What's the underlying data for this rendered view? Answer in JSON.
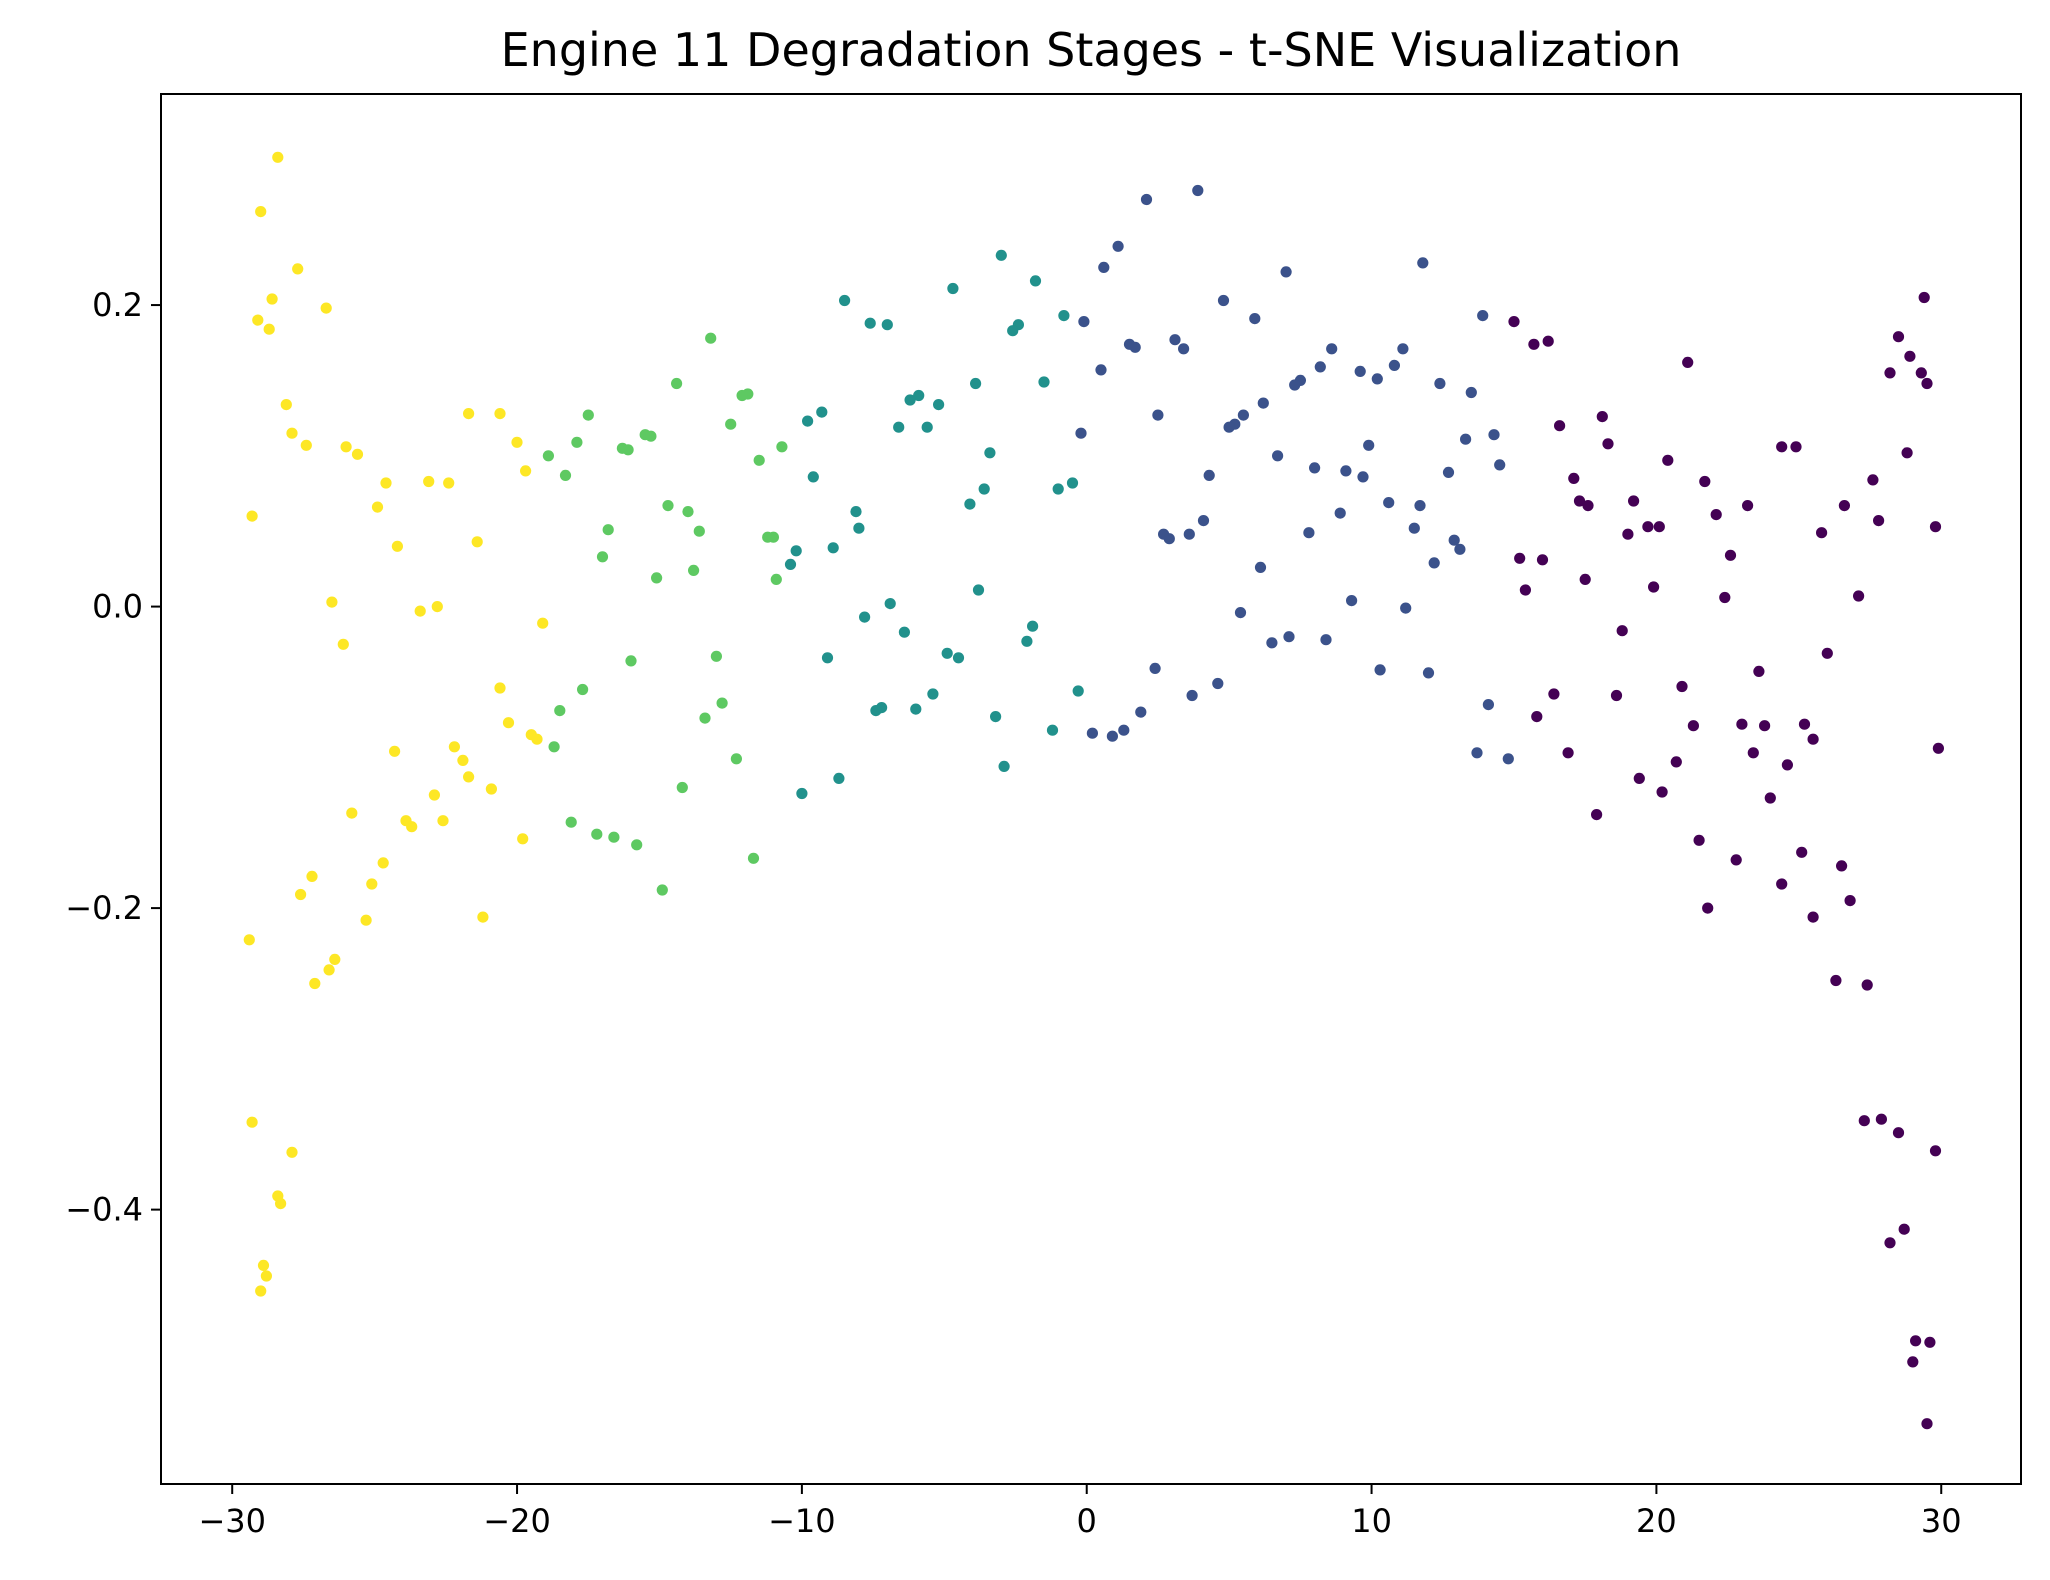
{
  "chart_data": {
    "type": "scatter",
    "title": "Engine 11 Degradation Stages - t-SNE Visualization",
    "xlabel": "",
    "ylabel": "",
    "xlim": [
      -32.5,
      32.8
    ],
    "ylim": [
      -0.582,
      0.34
    ],
    "xticks": [
      -30,
      -20,
      -10,
      0,
      10,
      20,
      30
    ],
    "yticks": [
      -0.4,
      -0.2,
      0.0,
      0.2
    ],
    "xtick_labels": [
      "−30",
      "−20",
      "−10",
      "0",
      "10",
      "20",
      "30"
    ],
    "ytick_labels": [
      "−0.4",
      "−0.2",
      "0.0",
      "0.2"
    ],
    "grid": false,
    "legend": "none",
    "colormap": "viridis",
    "series": [
      {
        "color": "#fde725",
        "points": [
          [
            -28.4,
            0.298
          ],
          [
            -29.0,
            0.262
          ],
          [
            -27.7,
            0.224
          ],
          [
            -28.6,
            0.204
          ],
          [
            -26.7,
            0.198
          ],
          [
            -29.1,
            0.19
          ],
          [
            -28.7,
            0.184
          ],
          [
            -28.1,
            0.134
          ],
          [
            -27.9,
            0.115
          ],
          [
            -27.4,
            0.107
          ],
          [
            -26.0,
            0.106
          ],
          [
            -25.6,
            0.101
          ],
          [
            -21.7,
            0.128
          ],
          [
            -20.6,
            0.128
          ],
          [
            -20.0,
            0.109
          ],
          [
            -29.3,
            0.06
          ],
          [
            -24.6,
            0.082
          ],
          [
            -23.1,
            0.083
          ],
          [
            -22.4,
            0.082
          ],
          [
            -19.7,
            0.09
          ],
          [
            -24.9,
            0.066
          ],
          [
            -24.2,
            0.04
          ],
          [
            -21.4,
            0.043
          ],
          [
            -26.5,
            0.003
          ],
          [
            -23.4,
            -0.003
          ],
          [
            -22.8,
            0.0
          ],
          [
            -19.1,
            -0.011
          ],
          [
            -26.1,
            -0.025
          ],
          [
            -20.6,
            -0.054
          ],
          [
            -20.3,
            -0.077
          ],
          [
            -19.5,
            -0.085
          ],
          [
            -19.3,
            -0.088
          ],
          [
            -24.3,
            -0.096
          ],
          [
            -22.2,
            -0.093
          ],
          [
            -21.9,
            -0.102
          ],
          [
            -21.7,
            -0.113
          ],
          [
            -22.9,
            -0.125
          ],
          [
            -20.9,
            -0.121
          ],
          [
            -25.8,
            -0.137
          ],
          [
            -23.9,
            -0.142
          ],
          [
            -22.6,
            -0.142
          ],
          [
            -23.7,
            -0.146
          ],
          [
            -19.8,
            -0.154
          ],
          [
            -24.7,
            -0.17
          ],
          [
            -27.2,
            -0.179
          ],
          [
            -25.1,
            -0.184
          ],
          [
            -27.6,
            -0.191
          ],
          [
            -25.3,
            -0.208
          ],
          [
            -21.2,
            -0.206
          ],
          [
            -29.4,
            -0.221
          ],
          [
            -26.4,
            -0.234
          ],
          [
            -26.6,
            -0.241
          ],
          [
            -27.1,
            -0.25
          ],
          [
            -29.3,
            -0.342
          ],
          [
            -27.9,
            -0.362
          ],
          [
            -28.4,
            -0.391
          ],
          [
            -28.3,
            -0.396
          ],
          [
            -28.9,
            -0.437
          ],
          [
            -28.8,
            -0.444
          ],
          [
            -29.0,
            -0.454
          ]
        ]
      },
      {
        "color": "#5ec962",
        "points": [
          [
            -13.2,
            0.178
          ],
          [
            -14.4,
            0.148
          ],
          [
            -11.9,
            0.141
          ],
          [
            -12.1,
            0.14
          ],
          [
            -17.5,
            0.127
          ],
          [
            -12.5,
            0.121
          ],
          [
            -15.5,
            0.114
          ],
          [
            -15.3,
            0.113
          ],
          [
            -17.9,
            0.109
          ],
          [
            -16.3,
            0.105
          ],
          [
            -16.1,
            0.104
          ],
          [
            -10.7,
            0.106
          ],
          [
            -18.9,
            0.1
          ],
          [
            -11.5,
            0.097
          ],
          [
            -18.3,
            0.087
          ],
          [
            -14.7,
            0.067
          ],
          [
            -14.0,
            0.063
          ],
          [
            -16.8,
            0.051
          ],
          [
            -13.6,
            0.05
          ],
          [
            -11.2,
            0.046
          ],
          [
            -11.0,
            0.046
          ],
          [
            -17.0,
            0.033
          ],
          [
            -13.8,
            0.024
          ],
          [
            -15.1,
            0.019
          ],
          [
            -10.9,
            0.018
          ],
          [
            -13.0,
            -0.033
          ],
          [
            -16.0,
            -0.036
          ],
          [
            -17.7,
            -0.055
          ],
          [
            -12.8,
            -0.064
          ],
          [
            -18.5,
            -0.069
          ],
          [
            -13.4,
            -0.074
          ],
          [
            -18.7,
            -0.093
          ],
          [
            -12.3,
            -0.101
          ],
          [
            -14.2,
            -0.12
          ],
          [
            -18.1,
            -0.143
          ],
          [
            -17.2,
            -0.151
          ],
          [
            -16.6,
            -0.153
          ],
          [
            -15.8,
            -0.158
          ],
          [
            -11.7,
            -0.167
          ],
          [
            -14.9,
            -0.188
          ]
        ]
      },
      {
        "color": "#21918c",
        "points": [
          [
            -3.0,
            0.233
          ],
          [
            -4.7,
            0.211
          ],
          [
            -1.8,
            0.216
          ],
          [
            -8.5,
            0.203
          ],
          [
            -0.8,
            0.193
          ],
          [
            -2.4,
            0.187
          ],
          [
            -2.6,
            0.183
          ],
          [
            -7.6,
            0.188
          ],
          [
            -7.0,
            0.187
          ],
          [
            -3.9,
            0.148
          ],
          [
            -1.5,
            0.149
          ],
          [
            -5.9,
            0.14
          ],
          [
            -6.2,
            0.137
          ],
          [
            -5.2,
            0.134
          ],
          [
            -9.3,
            0.129
          ],
          [
            -9.8,
            0.123
          ],
          [
            -6.6,
            0.119
          ],
          [
            -5.6,
            0.119
          ],
          [
            -3.4,
            0.102
          ],
          [
            -9.6,
            0.086
          ],
          [
            -0.5,
            0.082
          ],
          [
            -1.0,
            0.078
          ],
          [
            -3.6,
            0.078
          ],
          [
            -4.1,
            0.068
          ],
          [
            -8.1,
            0.063
          ],
          [
            -8.0,
            0.052
          ],
          [
            -8.9,
            0.039
          ],
          [
            -10.2,
            0.037
          ],
          [
            -10.4,
            0.028
          ],
          [
            -3.8,
            0.011
          ],
          [
            -6.9,
            0.002
          ],
          [
            -7.8,
            -0.007
          ],
          [
            -1.9,
            -0.013
          ],
          [
            -6.4,
            -0.017
          ],
          [
            -2.1,
            -0.023
          ],
          [
            -4.9,
            -0.031
          ],
          [
            -4.5,
            -0.034
          ],
          [
            -9.1,
            -0.034
          ],
          [
            -0.3,
            -0.056
          ],
          [
            -5.4,
            -0.058
          ],
          [
            -7.2,
            -0.067
          ],
          [
            -6.0,
            -0.068
          ],
          [
            -7.4,
            -0.069
          ],
          [
            -3.2,
            -0.073
          ],
          [
            -1.2,
            -0.082
          ],
          [
            -2.9,
            -0.106
          ],
          [
            -8.7,
            -0.114
          ],
          [
            -10.0,
            -0.124
          ]
        ]
      },
      {
        "color": "#3b528b",
        "points": [
          [
            3.9,
            0.276
          ],
          [
            2.1,
            0.27
          ],
          [
            1.1,
            0.239
          ],
          [
            11.8,
            0.228
          ],
          [
            0.6,
            0.225
          ],
          [
            7.0,
            0.222
          ],
          [
            4.8,
            0.203
          ],
          [
            13.9,
            0.193
          ],
          [
            5.9,
            0.191
          ],
          [
            -0.1,
            0.189
          ],
          [
            1.5,
            0.174
          ],
          [
            3.1,
            0.177
          ],
          [
            1.7,
            0.172
          ],
          [
            3.4,
            0.171
          ],
          [
            8.6,
            0.171
          ],
          [
            11.1,
            0.171
          ],
          [
            10.8,
            0.16
          ],
          [
            8.2,
            0.159
          ],
          [
            0.5,
            0.157
          ],
          [
            9.6,
            0.156
          ],
          [
            10.2,
            0.151
          ],
          [
            7.5,
            0.15
          ],
          [
            7.3,
            0.147
          ],
          [
            12.4,
            0.148
          ],
          [
            13.5,
            0.142
          ],
          [
            6.2,
            0.135
          ],
          [
            2.5,
            0.127
          ],
          [
            5.5,
            0.127
          ],
          [
            5.2,
            0.121
          ],
          [
            5.0,
            0.119
          ],
          [
            -0.2,
            0.115
          ],
          [
            14.3,
            0.114
          ],
          [
            13.3,
            0.111
          ],
          [
            9.9,
            0.107
          ],
          [
            6.7,
            0.1
          ],
          [
            14.5,
            0.094
          ],
          [
            8.0,
            0.092
          ],
          [
            9.1,
            0.09
          ],
          [
            12.7,
            0.089
          ],
          [
            4.3,
            0.087
          ],
          [
            9.7,
            0.086
          ],
          [
            10.6,
            0.069
          ],
          [
            11.7,
            0.067
          ],
          [
            8.9,
            0.062
          ],
          [
            4.1,
            0.057
          ],
          [
            11.5,
            0.052
          ],
          [
            7.8,
            0.049
          ],
          [
            3.6,
            0.048
          ],
          [
            2.7,
            0.048
          ],
          [
            2.9,
            0.045
          ],
          [
            12.9,
            0.044
          ],
          [
            13.1,
            0.038
          ],
          [
            12.2,
            0.029
          ],
          [
            6.1,
            0.026
          ],
          [
            9.3,
            0.004
          ],
          [
            11.2,
            -0.001
          ],
          [
            5.4,
            -0.004
          ],
          [
            7.1,
            -0.02
          ],
          [
            6.5,
            -0.024
          ],
          [
            8.4,
            -0.022
          ],
          [
            2.4,
            -0.041
          ],
          [
            10.3,
            -0.042
          ],
          [
            12.0,
            -0.044
          ],
          [
            4.6,
            -0.051
          ],
          [
            3.7,
            -0.059
          ],
          [
            1.9,
            -0.07
          ],
          [
            1.3,
            -0.082
          ],
          [
            0.2,
            -0.084
          ],
          [
            0.9,
            -0.086
          ],
          [
            14.1,
            -0.065
          ],
          [
            13.7,
            -0.097
          ],
          [
            14.8,
            -0.101
          ]
        ]
      },
      {
        "color": "#440154",
        "points": [
          [
            29.4,
            0.205
          ],
          [
            15.0,
            0.189
          ],
          [
            28.5,
            0.179
          ],
          [
            16.2,
            0.176
          ],
          [
            15.7,
            0.174
          ],
          [
            28.9,
            0.166
          ],
          [
            21.1,
            0.162
          ],
          [
            28.2,
            0.155
          ],
          [
            29.3,
            0.155
          ],
          [
            29.5,
            0.148
          ],
          [
            18.1,
            0.126
          ],
          [
            16.6,
            0.12
          ],
          [
            18.3,
            0.108
          ],
          [
            24.4,
            0.106
          ],
          [
            24.9,
            0.106
          ],
          [
            28.8,
            0.102
          ],
          [
            20.4,
            0.097
          ],
          [
            17.1,
            0.085
          ],
          [
            21.7,
            0.083
          ],
          [
            27.6,
            0.084
          ],
          [
            17.3,
            0.07
          ],
          [
            19.2,
            0.07
          ],
          [
            26.6,
            0.067
          ],
          [
            23.2,
            0.067
          ],
          [
            17.6,
            0.067
          ],
          [
            22.1,
            0.061
          ],
          [
            27.8,
            0.057
          ],
          [
            19.7,
            0.053
          ],
          [
            20.1,
            0.053
          ],
          [
            29.8,
            0.053
          ],
          [
            25.8,
            0.049
          ],
          [
            19.0,
            0.048
          ],
          [
            22.6,
            0.034
          ],
          [
            15.2,
            0.032
          ],
          [
            16.0,
            0.031
          ],
          [
            17.5,
            0.018
          ],
          [
            19.9,
            0.013
          ],
          [
            15.4,
            0.011
          ],
          [
            22.4,
            0.006
          ],
          [
            27.1,
            0.007
          ],
          [
            18.8,
            -0.016
          ],
          [
            26.0,
            -0.031
          ],
          [
            23.6,
            -0.043
          ],
          [
            20.9,
            -0.053
          ],
          [
            16.4,
            -0.058
          ],
          [
            18.6,
            -0.059
          ],
          [
            15.8,
            -0.073
          ],
          [
            23.0,
            -0.078
          ],
          [
            21.3,
            -0.079
          ],
          [
            23.8,
            -0.079
          ],
          [
            25.2,
            -0.078
          ],
          [
            25.5,
            -0.088
          ],
          [
            16.9,
            -0.097
          ],
          [
            23.4,
            -0.097
          ],
          [
            29.9,
            -0.094
          ],
          [
            20.7,
            -0.103
          ],
          [
            24.6,
            -0.105
          ],
          [
            19.4,
            -0.114
          ],
          [
            20.2,
            -0.123
          ],
          [
            24.0,
            -0.127
          ],
          [
            17.9,
            -0.138
          ],
          [
            21.5,
            -0.155
          ],
          [
            25.1,
            -0.163
          ],
          [
            22.8,
            -0.168
          ],
          [
            26.5,
            -0.172
          ],
          [
            24.4,
            -0.184
          ],
          [
            21.8,
            -0.2
          ],
          [
            26.8,
            -0.195
          ],
          [
            25.5,
            -0.206
          ],
          [
            26.3,
            -0.248
          ],
          [
            27.4,
            -0.251
          ],
          [
            27.3,
            -0.341
          ],
          [
            27.9,
            -0.34
          ],
          [
            28.5,
            -0.349
          ],
          [
            29.8,
            -0.361
          ],
          [
            28.7,
            -0.413
          ],
          [
            28.2,
            -0.422
          ],
          [
            29.1,
            -0.487
          ],
          [
            29.6,
            -0.488
          ],
          [
            29.0,
            -0.501
          ],
          [
            29.5,
            -0.542
          ]
        ]
      }
    ]
  }
}
